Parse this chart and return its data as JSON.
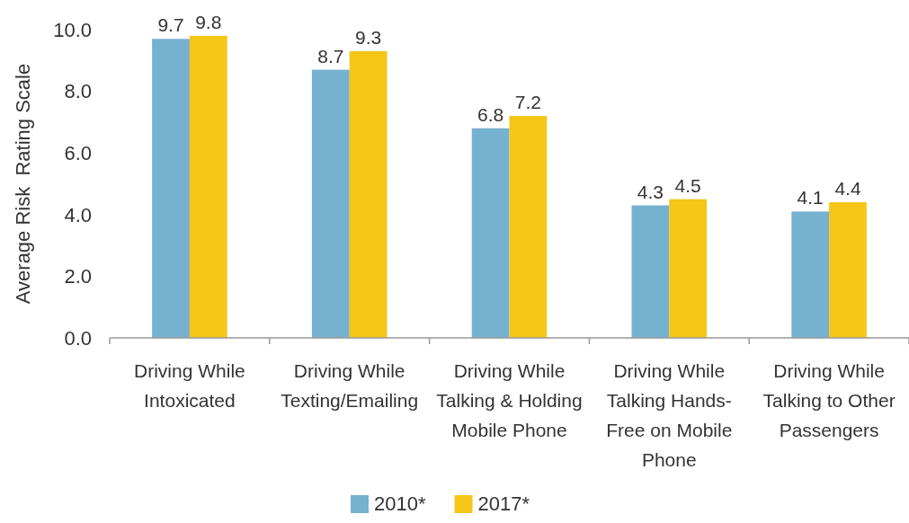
{
  "chart_data": {
    "type": "bar",
    "ylabel": "Average Risk  Rating Scale",
    "categories": [
      "Driving While Intoxicated",
      "Driving While Texting/Emailing",
      "Driving While Talking & Holding Mobile Phone",
      "Driving While Talking Hands-Free on Mobile Phone",
      "Driving While Talking to Other Passengers"
    ],
    "series": [
      {
        "name": "2010*",
        "color": "#77b1d0",
        "values": [
          9.7,
          8.7,
          6.8,
          4.3,
          4.1
        ]
      },
      {
        "name": "2017*",
        "color": "#f5c518",
        "values": [
          9.8,
          9.3,
          7.2,
          4.5,
          4.4
        ]
      }
    ],
    "ylim": [
      0,
      10
    ],
    "yticks": [
      {
        "value": 0,
        "label": "0.0"
      },
      {
        "value": 2,
        "label": "2.0"
      },
      {
        "value": 4,
        "label": "4.0"
      },
      {
        "value": 6,
        "label": "6.0"
      },
      {
        "value": 8,
        "label": "8.0"
      },
      {
        "value": 10,
        "label": "10.0"
      }
    ],
    "data_labels": true,
    "legend": "bottom",
    "grid": false
  }
}
